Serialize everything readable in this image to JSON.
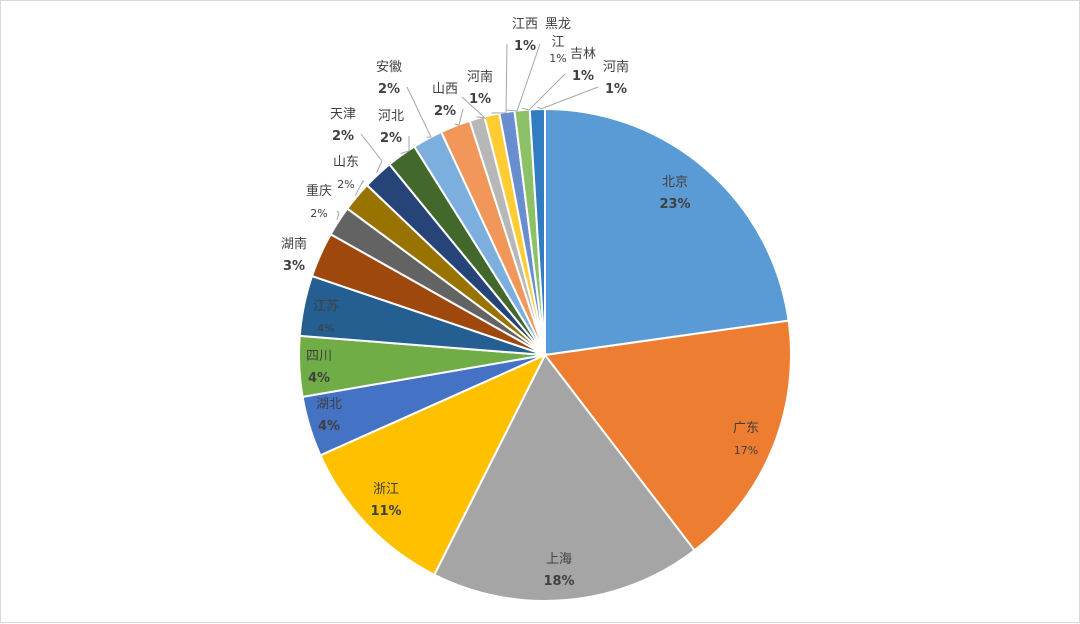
{
  "chart_data": {
    "type": "pie",
    "title": "",
    "slices": [
      {
        "label": "北京",
        "value": 23,
        "value_label": "23%",
        "color": "#5B9BD5"
      },
      {
        "label": "广东",
        "value": 17,
        "value_label": "17%",
        "color": "#ED7D31"
      },
      {
        "label": "上海",
        "value": 18,
        "value_label": "18%",
        "color": "#A5A5A5"
      },
      {
        "label": "浙江",
        "value": 11,
        "value_label": "11%",
        "color": "#FFC000"
      },
      {
        "label": "湖北",
        "value": 4,
        "value_label": "4%",
        "color": "#4472C4"
      },
      {
        "label": "四川",
        "value": 4,
        "value_label": "4%",
        "color": "#70AD47"
      },
      {
        "label": "江苏",
        "value": 4,
        "value_label": "4%",
        "color": "#255E91"
      },
      {
        "label": "湖南",
        "value": 3,
        "value_label": "3%",
        "color": "#9E480E"
      },
      {
        "label": "重庆",
        "value": 2,
        "value_label": "2%",
        "color": "#636363"
      },
      {
        "label": "山东",
        "value": 2,
        "value_label": "2%",
        "color": "#997300"
      },
      {
        "label": "天津",
        "value": 2,
        "value_label": "2%",
        "color": "#264478"
      },
      {
        "label": "河北",
        "value": 2,
        "value_label": "2%",
        "color": "#43682B"
      },
      {
        "label": "安徽",
        "value": 2,
        "value_label": "2%",
        "color": "#7CAFDD"
      },
      {
        "label": "山西",
        "value": 2,
        "value_label": "2%",
        "color": "#F1975A"
      },
      {
        "label": "河南",
        "value": 1,
        "value_label": "1%",
        "color": "#B7B7B7"
      },
      {
        "label": "江西",
        "value": 1,
        "value_label": "1%",
        "color": "#FFCD33"
      },
      {
        "label": "黑龙江",
        "value": 1,
        "value_label": "1%",
        "color": "#698ED0"
      },
      {
        "label": "吉林",
        "value": 1,
        "value_label": "1%",
        "color": "#8CC168"
      },
      {
        "label": "河南",
        "value": 1,
        "value_label": "1%",
        "color": "#327DC2"
      }
    ]
  }
}
